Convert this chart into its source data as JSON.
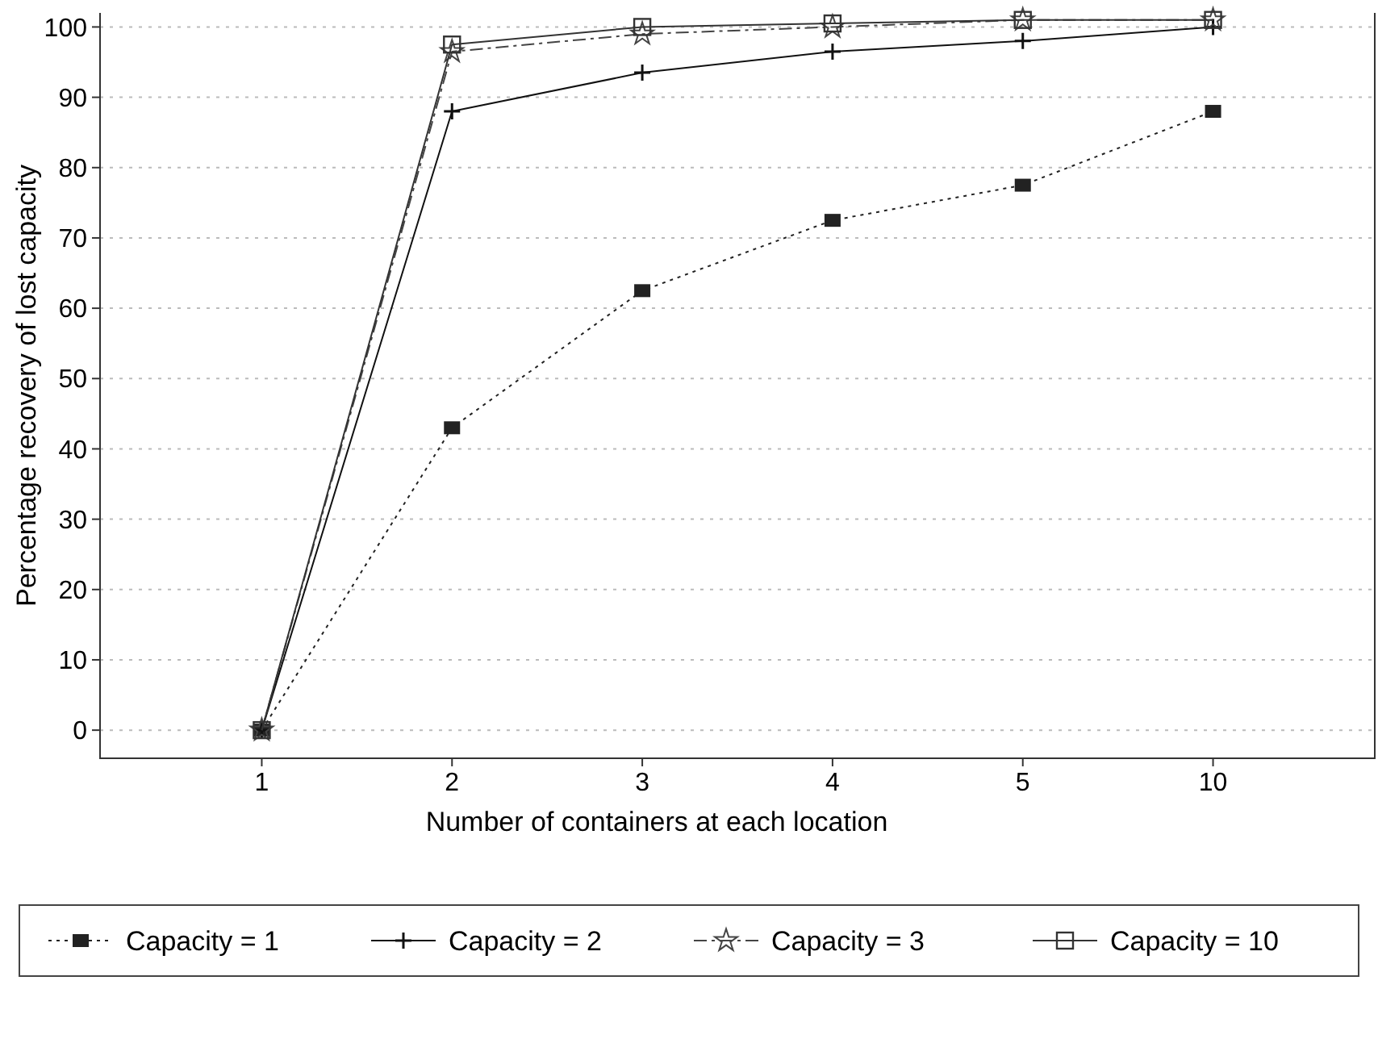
{
  "chart_data": {
    "type": "line",
    "xlabel": "Number of containers at each location",
    "ylabel": "Percentage recovery of lost capacity",
    "categories": [
      "1",
      "2",
      "3",
      "4",
      "5",
      "10"
    ],
    "ylim": [
      -4,
      102
    ],
    "yticks": [
      0,
      10,
      20,
      30,
      40,
      50,
      60,
      70,
      80,
      90,
      100
    ],
    "grid": "y",
    "legend": "bottom",
    "series": [
      {
        "name": "Capacity = 1",
        "color": "#222222",
        "marker": "square",
        "line_style": "dotted",
        "values": [
          0,
          43,
          62.5,
          72.5,
          77.5,
          88
        ]
      },
      {
        "name": "Capacity = 2",
        "color": "#111111",
        "marker": "cross",
        "line_style": "solid",
        "values": [
          0,
          88,
          93.5,
          96.5,
          98,
          100
        ]
      },
      {
        "name": "Capacity = 3",
        "color": "#444444",
        "marker": "star",
        "line_style": "dashed",
        "values": [
          0,
          96.5,
          99,
          100,
          101,
          101
        ]
      },
      {
        "name": "Capacity = 10",
        "color": "#333333",
        "marker": "square-open",
        "line_style": "solid",
        "values": [
          0,
          97.5,
          100,
          100.5,
          101,
          101
        ]
      }
    ]
  }
}
